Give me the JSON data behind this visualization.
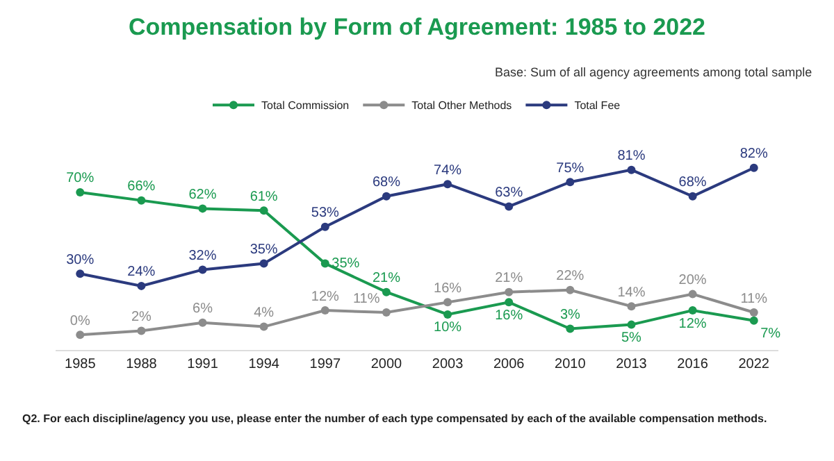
{
  "chart_data": {
    "type": "line",
    "title": "Compensation by Form of Agreement: 1985 to 2022",
    "subtitle": "Base: Sum of all agency agreements among total sample",
    "categories": [
      "1985",
      "1988",
      "1991",
      "1994",
      "1997",
      "2000",
      "2003",
      "2006",
      "2010",
      "2013",
      "2016",
      "2022"
    ],
    "series": [
      {
        "name": "Total Commission",
        "color": "#1a9a50",
        "values": [
          70,
          66,
          62,
          61,
          35,
          21,
          10,
          16,
          3,
          5,
          12,
          7
        ],
        "value_labels": [
          "70%",
          "66%",
          "62%",
          "61%",
          "35%",
          "21%",
          "10%",
          "16%",
          "3%",
          "5%",
          "12%",
          "7%"
        ]
      },
      {
        "name": "Total Other Methods",
        "color": "#8c8c8c",
        "values": [
          0,
          2,
          6,
          4,
          12,
          11,
          16,
          21,
          22,
          14,
          20,
          11
        ],
        "value_labels": [
          "0%",
          "2%",
          "6%",
          "4%",
          "12%",
          "11%",
          "16%",
          "21%",
          "22%",
          "14%",
          "20%",
          "11%"
        ]
      },
      {
        "name": "Total Fee",
        "color": "#2b3a7e",
        "values": [
          30,
          24,
          32,
          35,
          53,
          68,
          74,
          63,
          75,
          81,
          68,
          82
        ],
        "value_labels": [
          "30%",
          "24%",
          "32%",
          "35%",
          "53%",
          "68%",
          "74%",
          "63%",
          "75%",
          "81%",
          "68%",
          "82%"
        ]
      }
    ],
    "tick_labels": "x",
    "grid": false,
    "legend": "top",
    "marker": "circle",
    "line_style": "solid",
    "annotations": [
      "Q2. For each discipline/agency you use, please enter the number of each type compensated by each of the available compensation methods."
    ]
  }
}
